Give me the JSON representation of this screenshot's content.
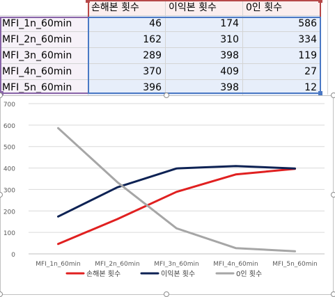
{
  "table": {
    "headers": [
      "손해본 횟수",
      "이익본 횟수",
      "0인 횟수"
    ],
    "rows": [
      {
        "label": "MFI_1n_60min",
        "values": [
          "46",
          "174",
          "586"
        ]
      },
      {
        "label": "MFI_2n_60min",
        "values": [
          "162",
          "310",
          "334"
        ]
      },
      {
        "label": "MFI_3n_60min",
        "values": [
          "289",
          "398",
          "119"
        ]
      },
      {
        "label": "MFI_4n_60min",
        "values": [
          "370",
          "409",
          "27"
        ]
      },
      {
        "label": "MFI_5n_60min",
        "values": [
          "396",
          "398",
          "12"
        ]
      }
    ]
  },
  "chart_data": {
    "type": "line",
    "categories": [
      "MFI_1n_60min",
      "MFI_2n_60min",
      "MFI_3n_60min",
      "MFI_4n_60min",
      "MFI_5n_60min"
    ],
    "series": [
      {
        "name": "손해본 횟수",
        "values": [
          46,
          162,
          289,
          370,
          396
        ],
        "color": "#e02020"
      },
      {
        "name": "이익본 횟수",
        "values": [
          174,
          310,
          398,
          409,
          398
        ],
        "color": "#0d2254"
      },
      {
        "name": "0인 횟수",
        "values": [
          586,
          334,
          119,
          27,
          12
        ],
        "color": "#a6a6a6"
      }
    ],
    "yticks": [
      "0",
      "100",
      "200",
      "300",
      "400",
      "500",
      "600",
      "700"
    ],
    "ylim": [
      0,
      700
    ],
    "grid": true,
    "legend_position": "bottom"
  }
}
